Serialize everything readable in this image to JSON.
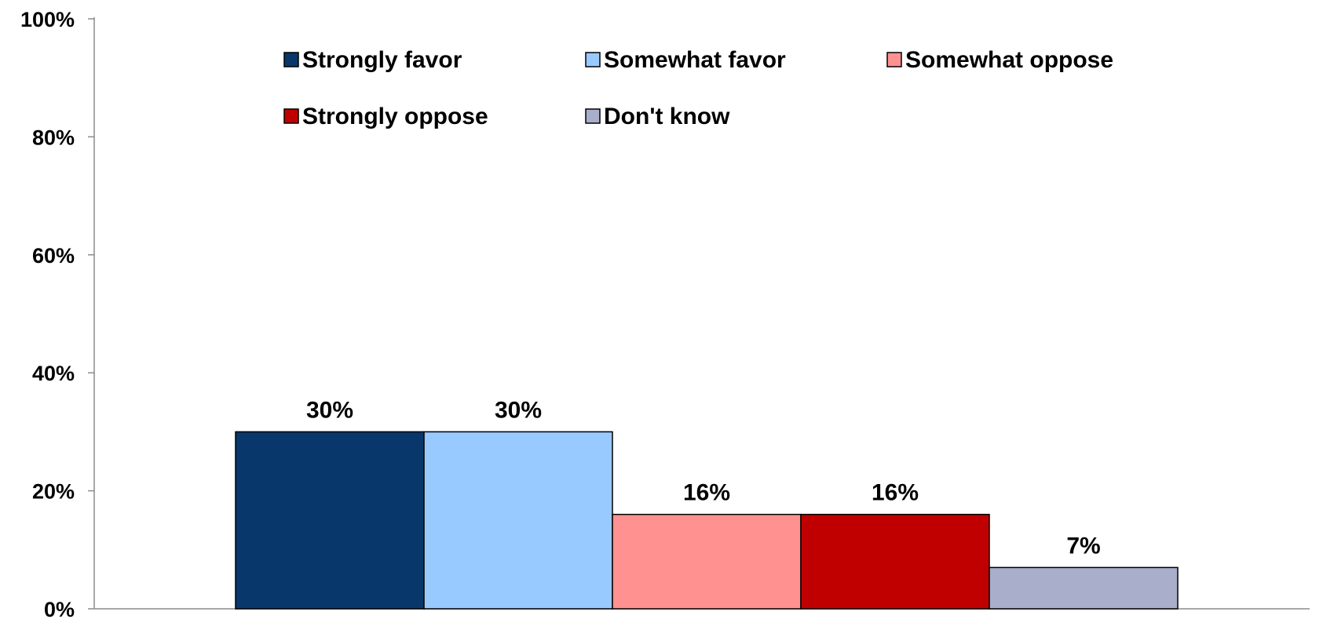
{
  "chart_data": {
    "type": "bar",
    "categories": [
      "Strongly favor",
      "Somewhat favor",
      "Somewhat oppose",
      "Strongly oppose",
      "Don't know"
    ],
    "values": [
      30,
      30,
      16,
      16,
      7
    ],
    "data_labels": [
      "30%",
      "30%",
      "16%",
      "16%",
      "7%"
    ],
    "colors": [
      "#08386b",
      "#99caff",
      "#ff9290",
      "#c00000",
      "#a9aecb"
    ],
    "ylim": [
      0,
      100
    ],
    "yticks": [
      0,
      20,
      40,
      60,
      80,
      100
    ],
    "ytick_labels": [
      "0%",
      "20%",
      "40%",
      "60%",
      "80%",
      "100%"
    ],
    "title": "",
    "xlabel": "",
    "ylabel": "",
    "grid": false,
    "legend": {
      "position": "top",
      "entries": [
        "Strongly favor",
        "Somewhat favor",
        "Somewhat oppose",
        "Strongly oppose",
        "Don't know"
      ]
    }
  }
}
